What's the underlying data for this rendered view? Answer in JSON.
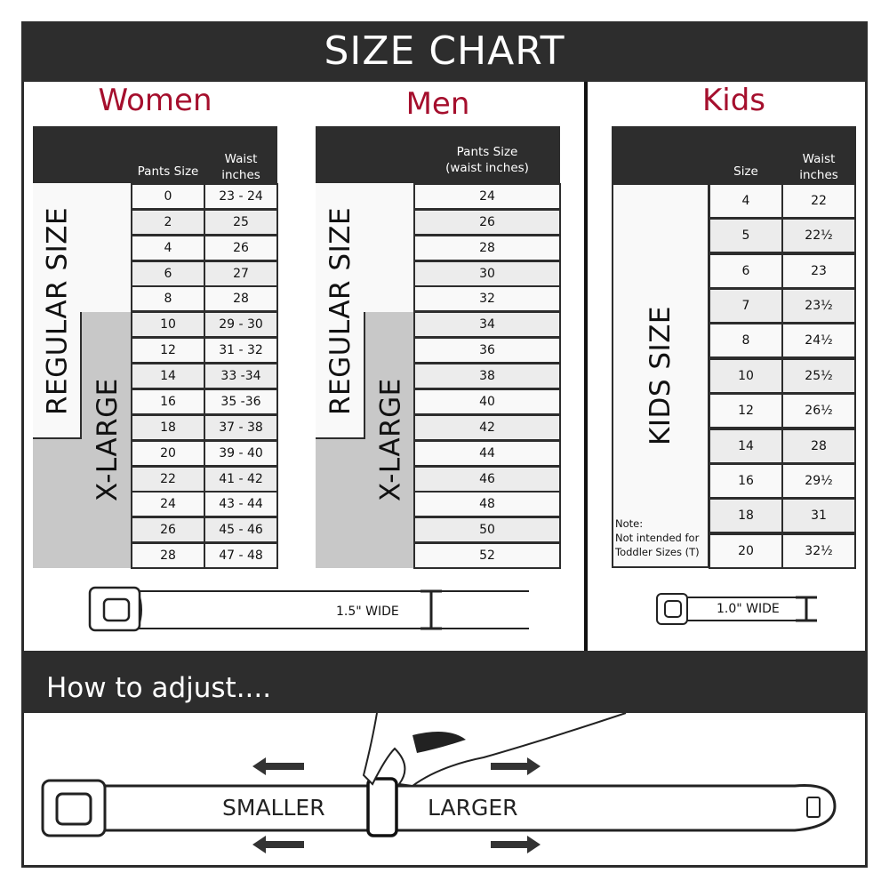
{
  "title": "SIZE CHART",
  "women": {
    "heading": "Women",
    "col1": "Pants Size",
    "col2_line1": "Waist",
    "col2_line2": "inches",
    "regular_label": "REGULAR SIZE",
    "xlarge_label": "X-LARGE",
    "sizes": [
      "0",
      "2",
      "4",
      "6",
      "8",
      "10",
      "12",
      "14",
      "16",
      "18",
      "20",
      "22",
      "24",
      "26",
      "28"
    ],
    "waists": [
      "23 - 24",
      "25",
      "26",
      "27",
      "28",
      "29 - 30",
      "31 - 32",
      "33 -34",
      "35 -36",
      "37 - 38",
      "39 - 40",
      "41 - 42",
      "43 - 44",
      "45 - 46",
      "47 - 48"
    ],
    "width_label": "1.5\" WIDE"
  },
  "men": {
    "heading": "Men",
    "col1_line1": "Pants Size",
    "col1_line2": "(waist inches)",
    "regular_label": "REGULAR SIZE",
    "xlarge_label": "X-LARGE",
    "sizes": [
      "24",
      "26",
      "28",
      "30",
      "32",
      "34",
      "36",
      "38",
      "40",
      "42",
      "44",
      "46",
      "48",
      "50",
      "52"
    ]
  },
  "kids": {
    "heading": "Kids",
    "col1": "Size",
    "col2_line1": "Waist",
    "col2_line2": "inches",
    "label": "KIDS SIZE",
    "note_line1": "Note:",
    "note_line2": "Not intended for",
    "note_line3": "Toddler Sizes (T)",
    "sizes": [
      "4",
      "5",
      "6",
      "7",
      "8",
      "10",
      "12",
      "14",
      "16",
      "18",
      "20"
    ],
    "waists": [
      "22",
      "22½",
      "23",
      "23½",
      "24½",
      "25½",
      "26½",
      "28",
      "29½",
      "31",
      "32½"
    ],
    "width_label": "1.0\" WIDE"
  },
  "adjust": {
    "heading": "How to adjust....",
    "smaller": "SMALLER",
    "larger": "LARGER"
  },
  "colors": {
    "accent": "#a50f2d",
    "dark": "#2d2d2d",
    "xlarge_fill": "#c8c8c8"
  }
}
